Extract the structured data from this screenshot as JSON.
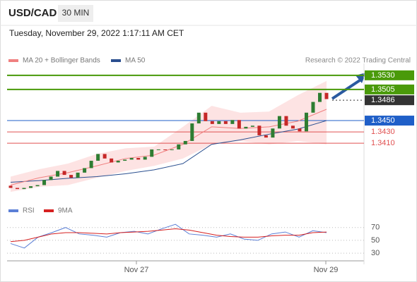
{
  "header": {
    "symbol": "USD/CAD",
    "timeframe": "30 MIN",
    "datetime": "Tuesday, November 29, 2022 1:17:11 AM CET"
  },
  "chart_data": [
    {
      "type": "candlestick",
      "legend": [
        {
          "name": "MA 20 + Bollinger Bands",
          "color": "#f08080"
        },
        {
          "name": "MA 50",
          "color": "#2a4f8f"
        }
      ],
      "credit": "Research © 2022 Trading Central",
      "ylim": [
        1.3308,
        1.3551
      ],
      "open": [
        1.3335,
        1.3331,
        1.3329,
        1.3331,
        1.3334,
        1.3336,
        1.3345,
        1.3351,
        1.3361,
        1.3354,
        1.3349,
        1.3358,
        1.3366,
        1.3379,
        1.3391,
        1.3383,
        1.3376,
        1.3379,
        1.3381,
        1.3384,
        1.3381,
        1.3386,
        1.3399,
        1.3399,
        1.3398,
        1.3399,
        1.3408,
        1.3414,
        1.3445,
        1.3464,
        1.3449,
        1.3444,
        1.3449,
        1.3444,
        1.3451,
        1.3436,
        1.3439,
        1.3441,
        1.3424,
        1.342,
        1.3436,
        1.3458,
        1.3441,
        1.3436,
        1.3431,
        1.3464,
        1.3483,
        1.3499
      ],
      "close": [
        1.3331,
        1.3329,
        1.3331,
        1.3334,
        1.3336,
        1.3345,
        1.3351,
        1.3361,
        1.3354,
        1.3349,
        1.3358,
        1.3366,
        1.3379,
        1.3391,
        1.3383,
        1.3376,
        1.3379,
        1.3381,
        1.3384,
        1.3381,
        1.3386,
        1.3399,
        1.3399,
        1.3398,
        1.3399,
        1.3408,
        1.3414,
        1.3445,
        1.3464,
        1.3449,
        1.3444,
        1.3449,
        1.3444,
        1.3451,
        1.3436,
        1.3439,
        1.3441,
        1.3424,
        1.342,
        1.3436,
        1.3458,
        1.3441,
        1.3436,
        1.3431,
        1.3464,
        1.3483,
        1.3499,
        1.3488
      ],
      "up_color": "#2e7d32",
      "down_color": "#c62828",
      "series": [
        {
          "name": "MA 50",
          "color": "#2a4f8f",
          "values": [
            1.3341,
            1.3344,
            1.3348,
            1.3351,
            1.3356,
            1.3363,
            1.3374,
            1.3408,
            1.3416,
            1.3426,
            1.3435,
            1.345
          ]
        },
        {
          "name": "MA 20",
          "color": "#f08080",
          "values": [
            1.3336,
            1.3349,
            1.3358,
            1.337,
            1.3383,
            1.3389,
            1.3408,
            1.3439,
            1.3436,
            1.3439,
            1.3449,
            1.347
          ]
        }
      ],
      "band": {
        "color": "#fcdcdc",
        "upper": [
          1.3351,
          1.3364,
          1.3374,
          1.3391,
          1.3401,
          1.3404,
          1.3439,
          1.3476,
          1.3464,
          1.3466,
          1.3495,
          1.352
        ],
        "lower": [
          1.3324,
          1.3333,
          1.3336,
          1.3349,
          1.3361,
          1.337,
          1.3383,
          1.3408,
          1.3414,
          1.3408,
          1.3414,
          1.3408
        ]
      },
      "levels": [
        {
          "value": 1.353,
          "label": "1.3530",
          "color": "#4a9a0a",
          "style": "box"
        },
        {
          "value": 1.3505,
          "label": "1.3505",
          "color": "#4a9a0a",
          "style": "box"
        },
        {
          "value": 1.3486,
          "label": "1.3486",
          "color": "#333333",
          "style": "dotted"
        },
        {
          "value": 1.345,
          "label": "1.3450",
          "color": "#1f5fc8",
          "style": "box"
        },
        {
          "value": 1.343,
          "label": "1.3430",
          "color": "#e05050",
          "style": "text"
        },
        {
          "value": 1.341,
          "label": "1.3410",
          "color": "#e05050",
          "style": "text"
        }
      ],
      "x_labels": [
        "Nov 27",
        "Nov 29"
      ]
    },
    {
      "type": "line",
      "ylim": [
        18,
        84
      ],
      "yticks": [
        70,
        50,
        30
      ],
      "series": [
        {
          "name": "RSI",
          "color": "#5b7fd6",
          "values": [
            45,
            38,
            55,
            62,
            70,
            60,
            58,
            55,
            62,
            64,
            60,
            68,
            75,
            60,
            58,
            55,
            60,
            52,
            50,
            60,
            63,
            55,
            65,
            62
          ]
        },
        {
          "name": "9MA",
          "color": "#d62020",
          "values": [
            48,
            50,
            55,
            60,
            62,
            62,
            61,
            60,
            62,
            63,
            64,
            66,
            68,
            66,
            62,
            58,
            56,
            55,
            55,
            57,
            58,
            58,
            62,
            63
          ]
        }
      ]
    }
  ]
}
